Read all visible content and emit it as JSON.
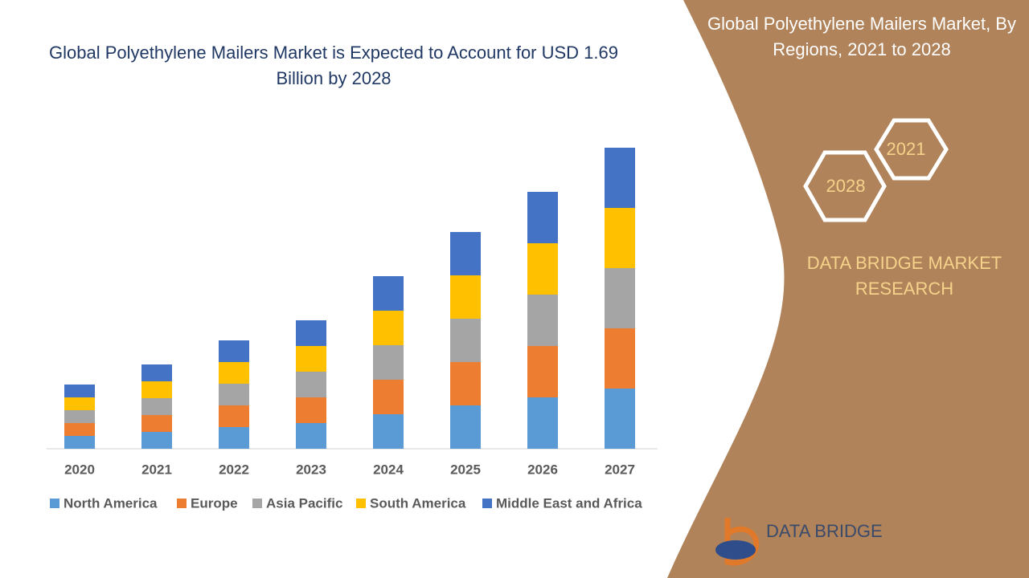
{
  "chart_data": {
    "type": "stacked_bar",
    "title": "Global Polyethylene Mailers Market is Expected to Account for USD 1.69 Billion by 2028",
    "categories": [
      "2020",
      "2021",
      "2022",
      "2023",
      "2024",
      "2025",
      "2026",
      "2027"
    ],
    "series": [
      {
        "name": "North America",
        "color": "#5b9bd5",
        "values": [
          16,
          21,
          27,
          32,
          43,
          54,
          64,
          75
        ]
      },
      {
        "name": "Europe",
        "color": "#ed7d31",
        "values": [
          16,
          21,
          27,
          32,
          43,
          54,
          64,
          75
        ]
      },
      {
        "name": "Asia Pacific",
        "color": "#a5a5a5",
        "values": [
          16,
          21,
          27,
          32,
          43,
          54,
          64,
          75
        ]
      },
      {
        "name": "South America",
        "color": "#ffc000",
        "values": [
          16,
          21,
          27,
          32,
          43,
          54,
          64,
          75
        ]
      },
      {
        "name": "Middle East and Africa",
        "color": "#4472c4",
        "values": [
          16,
          21,
          27,
          32,
          43,
          54,
          64,
          75
        ]
      }
    ],
    "ylim": [
      0,
      400
    ]
  },
  "panel": {
    "title": "Global Polyethylene Mailers Market, By Regions, 2021 to 2028",
    "hex_years": [
      "2021",
      "2028"
    ],
    "brand": "DATA BRIDGE MARKET RESEARCH",
    "logo": "DATA BRIDGE"
  }
}
